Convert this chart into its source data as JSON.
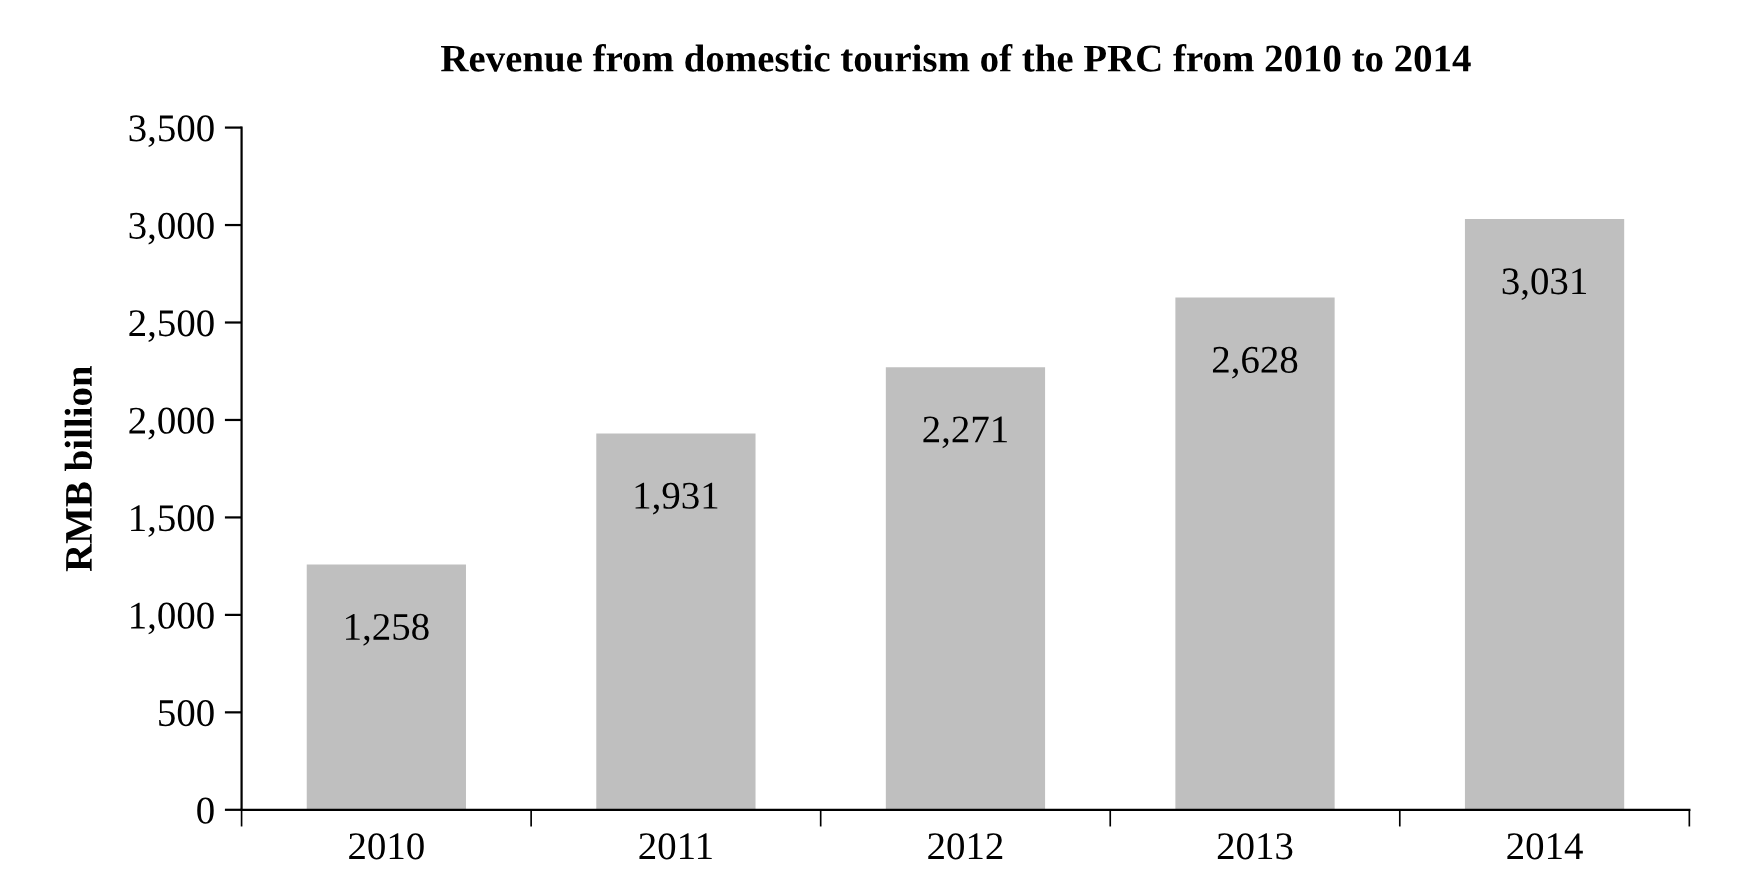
{
  "chart_data": {
    "type": "bar",
    "title": "Revenue from domestic tourism of the PRC from 2010 to 2014",
    "ylabel": "RMB billion",
    "categories": [
      "2010",
      "2011",
      "2012",
      "2013",
      "2014"
    ],
    "values": [
      1258,
      1931,
      2271,
      2628,
      3031
    ],
    "color": "#bfbfbf",
    "ylim": [
      0,
      3500
    ],
    "yticks": [
      0,
      500,
      {
        "value": 1000,
        "label": "1,000"
      },
      {
        "value": 1500,
        "label": "1,500"
      },
      {
        "value": 2000,
        "label": "2,000"
      },
      {
        "value": 2500,
        "label": "2,500"
      },
      {
        "value": 3000,
        "label": "3,000"
      },
      {
        "value": 3500,
        "label": "3,500"
      }
    ],
    "value_labels": [
      "1,258",
      "1,931",
      "2,271",
      "2,628",
      "3,031"
    ],
    "grid": false,
    "legend": false
  }
}
